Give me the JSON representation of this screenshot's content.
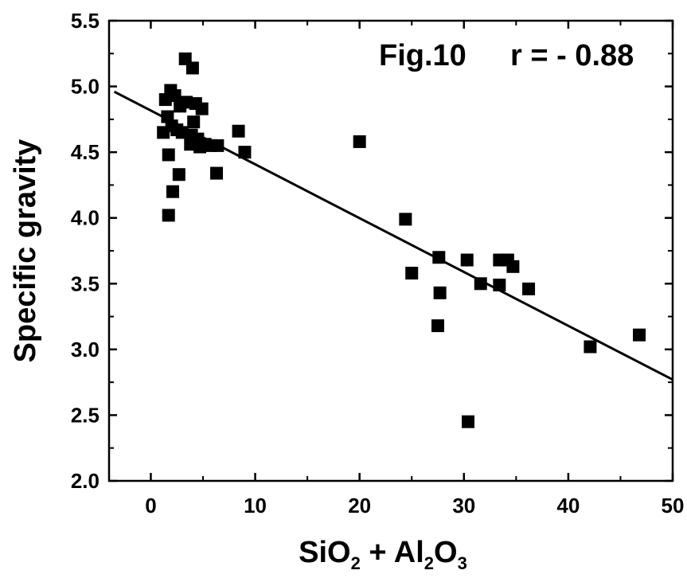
{
  "chart_data": {
    "type": "scatter",
    "title": "",
    "annotation": {
      "fig": "Fig.10",
      "r": "r = - 0.88"
    },
    "xlabel": {
      "parts": [
        "SiO",
        "2",
        " + Al",
        "2",
        "O",
        "3"
      ]
    },
    "ylabel": "Specific gravity",
    "xlim": [
      -4,
      50
    ],
    "ylim": [
      2.0,
      5.5
    ],
    "x_ticks": [
      0,
      10,
      20,
      30,
      40,
      50
    ],
    "x_tick_labels": [
      "0",
      "10",
      "20",
      "30",
      "40",
      "50"
    ],
    "y_ticks": [
      2.0,
      2.5,
      3.0,
      3.5,
      4.0,
      4.5,
      5.0,
      5.5
    ],
    "y_tick_labels": [
      "2.0",
      "2.5",
      "3.0",
      "3.5",
      "4.0",
      "4.5",
      "5.0",
      "5.5"
    ],
    "grid": false,
    "points": [
      {
        "x": 1.2,
        "y": 4.65
      },
      {
        "x": 1.4,
        "y": 4.9
      },
      {
        "x": 1.6,
        "y": 4.77
      },
      {
        "x": 1.7,
        "y": 4.48
      },
      {
        "x": 1.7,
        "y": 4.02
      },
      {
        "x": 1.9,
        "y": 4.97
      },
      {
        "x": 2.0,
        "y": 4.7
      },
      {
        "x": 2.1,
        "y": 4.2
      },
      {
        "x": 2.3,
        "y": 4.93
      },
      {
        "x": 2.5,
        "y": 4.67
      },
      {
        "x": 2.7,
        "y": 4.33
      },
      {
        "x": 2.8,
        "y": 4.85
      },
      {
        "x": 3.0,
        "y": 4.65
      },
      {
        "x": 3.3,
        "y": 5.21
      },
      {
        "x": 3.4,
        "y": 4.88
      },
      {
        "x": 3.8,
        "y": 4.56
      },
      {
        "x": 3.9,
        "y": 4.63
      },
      {
        "x": 4.0,
        "y": 5.14
      },
      {
        "x": 4.1,
        "y": 4.73
      },
      {
        "x": 4.3,
        "y": 4.87
      },
      {
        "x": 4.5,
        "y": 4.6
      },
      {
        "x": 4.7,
        "y": 4.54
      },
      {
        "x": 4.9,
        "y": 4.83
      },
      {
        "x": 5.2,
        "y": 4.56
      },
      {
        "x": 5.7,
        "y": 4.55
      },
      {
        "x": 6.4,
        "y": 4.55
      },
      {
        "x": 6.3,
        "y": 4.34
      },
      {
        "x": 8.4,
        "y": 4.66
      },
      {
        "x": 9.0,
        "y": 4.5
      },
      {
        "x": 20.0,
        "y": 4.58
      },
      {
        "x": 24.4,
        "y": 3.99
      },
      {
        "x": 25.0,
        "y": 3.58
      },
      {
        "x": 27.6,
        "y": 3.7
      },
      {
        "x": 27.7,
        "y": 3.43
      },
      {
        "x": 27.5,
        "y": 3.18
      },
      {
        "x": 30.3,
        "y": 3.68
      },
      {
        "x": 30.4,
        "y": 2.45
      },
      {
        "x": 31.6,
        "y": 3.5
      },
      {
        "x": 33.4,
        "y": 3.68
      },
      {
        "x": 33.4,
        "y": 3.49
      },
      {
        "x": 34.2,
        "y": 3.68
      },
      {
        "x": 34.7,
        "y": 3.63
      },
      {
        "x": 36.2,
        "y": 3.46
      },
      {
        "x": 42.1,
        "y": 3.02
      },
      {
        "x": 46.8,
        "y": 3.11
      }
    ],
    "fit_line": {
      "x": [
        -3.5,
        50
      ],
      "y": [
        4.96,
        2.77
      ]
    },
    "colors": {
      "marker": "#000000",
      "line": "#000000",
      "axis": "#000000"
    }
  }
}
